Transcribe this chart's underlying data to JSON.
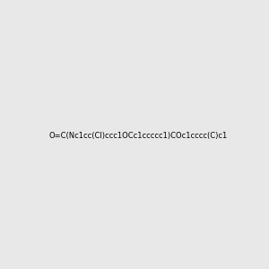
{
  "smiles": "O=C(Nc1cc(Cl)ccc1OCc1ccccc1)COc1cccc(C)c1",
  "title": "",
  "background_color": "#e8e8e8",
  "figsize": [
    3.0,
    3.0
  ],
  "dpi": 100
}
